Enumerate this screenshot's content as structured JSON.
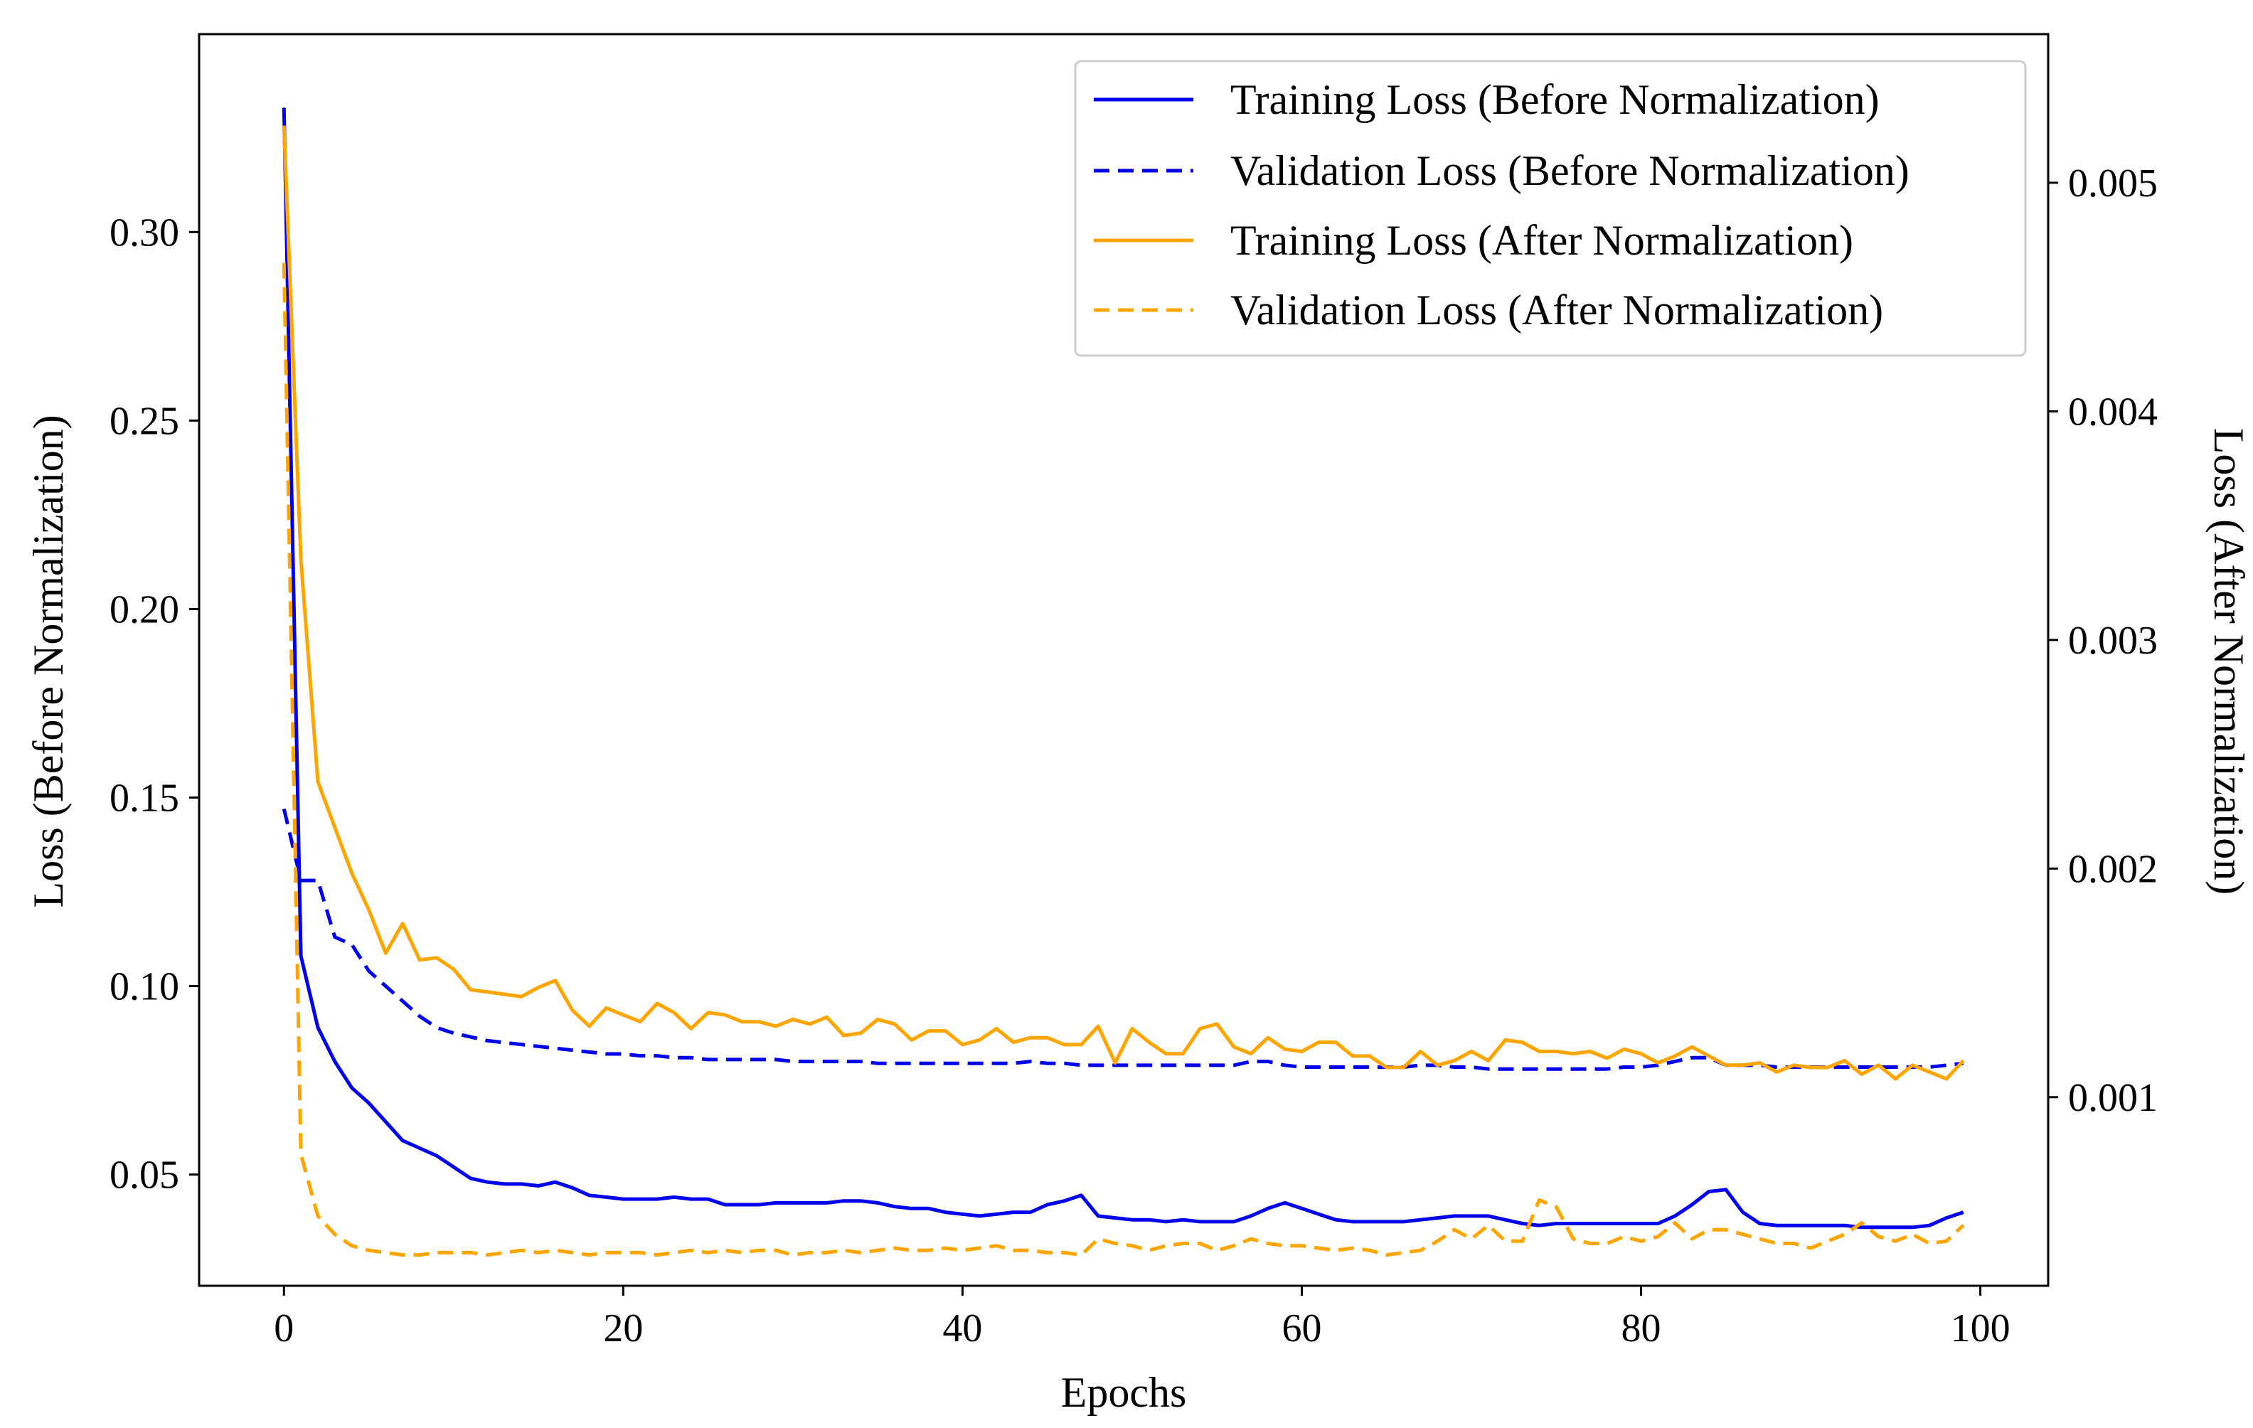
{
  "colors": {
    "before": "#0000ee",
    "after": "#ffa500",
    "axis": "#000000",
    "legend_border": "#cccccc",
    "background": "#ffffff"
  },
  "chart_data": {
    "type": "line",
    "title": "",
    "xlabel": "Epochs",
    "ylabel_left": "Loss (Before Normalization)",
    "ylabel_right": "Loss (After Normalization)",
    "xlim": [
      -5,
      104
    ],
    "ylim_left": [
      0.0205,
      0.3525
    ],
    "ylim_right": [
      0.000175,
      0.00565
    ],
    "x_ticks": [
      0,
      20,
      40,
      60,
      80,
      100
    ],
    "x_tick_labels": [
      "0",
      "20",
      "40",
      "60",
      "80",
      "100"
    ],
    "y_left_ticks": [
      0.05,
      0.1,
      0.15,
      0.2,
      0.25,
      0.3
    ],
    "y_left_tick_labels": [
      "0.05",
      "0.10",
      "0.15",
      "0.20",
      "0.25",
      "0.30"
    ],
    "y_right_ticks": [
      0.001,
      0.002,
      0.003,
      0.004,
      0.005
    ],
    "y_right_tick_labels": [
      "0.001",
      "0.002",
      "0.003",
      "0.004",
      "0.005"
    ],
    "legend_position": "top-right",
    "series": [
      {
        "name": "Training Loss (Before Normalization)",
        "axis": "left",
        "style": "solid",
        "color_key": "before",
        "x": [
          0,
          1,
          2,
          3,
          4,
          5,
          6,
          7,
          8,
          9,
          10,
          11,
          12,
          13,
          14,
          15,
          16,
          17,
          18,
          19,
          20,
          21,
          22,
          23,
          24,
          25,
          26,
          27,
          28,
          29,
          30,
          31,
          32,
          33,
          34,
          35,
          36,
          37,
          38,
          39,
          40,
          41,
          42,
          43,
          44,
          45,
          46,
          47,
          48,
          49,
          50,
          51,
          52,
          53,
          54,
          55,
          56,
          57,
          58,
          59,
          60,
          61,
          62,
          63,
          64,
          65,
          66,
          67,
          68,
          69,
          70,
          71,
          72,
          73,
          74,
          75,
          76,
          77,
          78,
          79,
          80,
          81,
          82,
          83,
          84,
          85,
          86,
          87,
          88,
          89,
          90,
          91,
          92,
          93,
          94,
          95,
          96,
          97,
          98,
          99
        ],
        "values": [
          0.333,
          0.108,
          0.089,
          0.08,
          0.073,
          0.069,
          0.064,
          0.059,
          0.057,
          0.055,
          0.052,
          0.049,
          0.048,
          0.0475,
          0.0475,
          0.047,
          0.048,
          0.0465,
          0.0445,
          0.044,
          0.0435,
          0.0435,
          0.0435,
          0.044,
          0.0435,
          0.0435,
          0.042,
          0.042,
          0.042,
          0.0425,
          0.0425,
          0.0425,
          0.0425,
          0.043,
          0.043,
          0.0425,
          0.0415,
          0.041,
          0.041,
          0.04,
          0.0395,
          0.039,
          0.0395,
          0.04,
          0.04,
          0.042,
          0.043,
          0.0445,
          0.039,
          0.0385,
          0.038,
          0.038,
          0.0375,
          0.038,
          0.0375,
          0.0375,
          0.0375,
          0.039,
          0.041,
          0.0425,
          0.041,
          0.0395,
          0.038,
          0.0375,
          0.0375,
          0.0375,
          0.0375,
          0.038,
          0.0385,
          0.039,
          0.039,
          0.039,
          0.038,
          0.037,
          0.0365,
          0.037,
          0.037,
          0.037,
          0.037,
          0.037,
          0.037,
          0.037,
          0.039,
          0.042,
          0.0455,
          0.046,
          0.04,
          0.037,
          0.0365,
          0.0365,
          0.0365,
          0.0365,
          0.0365,
          0.036,
          0.036,
          0.036,
          0.036,
          0.0365,
          0.0385,
          0.04
        ]
      },
      {
        "name": "Validation Loss (Before Normalization)",
        "axis": "left",
        "style": "dashed",
        "color_key": "before",
        "x": [
          0,
          1,
          2,
          3,
          4,
          5,
          6,
          7,
          8,
          9,
          10,
          11,
          12,
          13,
          14,
          15,
          16,
          17,
          18,
          19,
          20,
          21,
          22,
          23,
          24,
          25,
          26,
          27,
          28,
          29,
          30,
          31,
          32,
          33,
          34,
          35,
          36,
          37,
          38,
          39,
          40,
          41,
          42,
          43,
          44,
          45,
          46,
          47,
          48,
          49,
          50,
          51,
          52,
          53,
          54,
          55,
          56,
          57,
          58,
          59,
          60,
          61,
          62,
          63,
          64,
          65,
          66,
          67,
          68,
          69,
          70,
          71,
          72,
          73,
          74,
          75,
          76,
          77,
          78,
          79,
          80,
          81,
          82,
          83,
          84,
          85,
          86,
          87,
          88,
          89,
          90,
          91,
          92,
          93,
          94,
          95,
          96,
          97,
          98,
          99
        ],
        "values": [
          0.147,
          0.128,
          0.128,
          0.113,
          0.111,
          0.104,
          0.1,
          0.096,
          0.092,
          0.089,
          0.0875,
          0.0865,
          0.0855,
          0.085,
          0.0845,
          0.084,
          0.0835,
          0.083,
          0.0825,
          0.082,
          0.082,
          0.0815,
          0.0815,
          0.081,
          0.081,
          0.0805,
          0.0805,
          0.0805,
          0.0805,
          0.0805,
          0.08,
          0.08,
          0.08,
          0.08,
          0.08,
          0.0795,
          0.0795,
          0.0795,
          0.0795,
          0.0795,
          0.0795,
          0.0795,
          0.0795,
          0.0795,
          0.08,
          0.0795,
          0.0795,
          0.079,
          0.079,
          0.079,
          0.079,
          0.079,
          0.079,
          0.079,
          0.079,
          0.079,
          0.079,
          0.08,
          0.08,
          0.079,
          0.0785,
          0.0785,
          0.0785,
          0.0785,
          0.0785,
          0.0785,
          0.0785,
          0.079,
          0.079,
          0.0785,
          0.0785,
          0.078,
          0.078,
          0.078,
          0.078,
          0.078,
          0.078,
          0.078,
          0.078,
          0.0785,
          0.0785,
          0.079,
          0.08,
          0.081,
          0.081,
          0.079,
          0.079,
          0.079,
          0.0785,
          0.0785,
          0.0785,
          0.0785,
          0.0785,
          0.0785,
          0.0785,
          0.0785,
          0.0785,
          0.0785,
          0.079,
          0.0795
        ]
      },
      {
        "name": "Training Loss (After Normalization)",
        "axis": "right",
        "style": "solid",
        "color_key": "after",
        "x": [
          0,
          1,
          2,
          3,
          4,
          5,
          6,
          7,
          8,
          9,
          10,
          11,
          12,
          13,
          14,
          15,
          16,
          17,
          18,
          19,
          20,
          21,
          22,
          23,
          24,
          25,
          26,
          27,
          28,
          29,
          30,
          31,
          32,
          33,
          34,
          35,
          36,
          37,
          38,
          39,
          40,
          41,
          42,
          43,
          44,
          45,
          46,
          47,
          48,
          49,
          50,
          51,
          52,
          53,
          54,
          55,
          56,
          57,
          58,
          59,
          60,
          61,
          62,
          63,
          64,
          65,
          66,
          67,
          68,
          69,
          70,
          71,
          72,
          73,
          74,
          75,
          76,
          77,
          78,
          79,
          80,
          81,
          82,
          83,
          84,
          85,
          86,
          87,
          88,
          89,
          90,
          91,
          92,
          93,
          94,
          95,
          96,
          97,
          98,
          99
        ],
        "values": [
          0.00525,
          0.00335,
          0.00238,
          0.00218,
          0.00198,
          0.00182,
          0.00163,
          0.00176,
          0.0016,
          0.00161,
          0.00156,
          0.00147,
          0.00146,
          0.00145,
          0.00144,
          0.00148,
          0.00151,
          0.00138,
          0.00131,
          0.00139,
          0.00136,
          0.00133,
          0.00141,
          0.00137,
          0.0013,
          0.00137,
          0.00136,
          0.00133,
          0.00133,
          0.00131,
          0.00134,
          0.00132,
          0.00135,
          0.00127,
          0.00128,
          0.00134,
          0.00132,
          0.00125,
          0.00129,
          0.00129,
          0.00123,
          0.00125,
          0.0013,
          0.00124,
          0.00126,
          0.00126,
          0.00123,
          0.00123,
          0.00131,
          0.00115,
          0.0013,
          0.00124,
          0.00119,
          0.00119,
          0.0013,
          0.00132,
          0.00122,
          0.00119,
          0.00126,
          0.00121,
          0.0012,
          0.00124,
          0.00124,
          0.00118,
          0.00118,
          0.00113,
          0.00113,
          0.0012,
          0.00114,
          0.00116,
          0.0012,
          0.00116,
          0.00125,
          0.00124,
          0.0012,
          0.0012,
          0.00119,
          0.0012,
          0.00117,
          0.00121,
          0.00119,
          0.00115,
          0.00118,
          0.00122,
          0.00118,
          0.00114,
          0.00114,
          0.00115,
          0.00111,
          0.00114,
          0.00113,
          0.00113,
          0.00116,
          0.0011,
          0.00114,
          0.00108,
          0.00114,
          0.00111,
          0.00108,
          0.00116
        ]
      },
      {
        "name": "Validation Loss (After Normalization)",
        "axis": "right",
        "style": "dashed",
        "color_key": "after",
        "x": [
          0,
          1,
          2,
          3,
          4,
          5,
          6,
          7,
          8,
          9,
          10,
          11,
          12,
          13,
          14,
          15,
          16,
          17,
          18,
          19,
          20,
          21,
          22,
          23,
          24,
          25,
          26,
          27,
          28,
          29,
          30,
          31,
          32,
          33,
          34,
          35,
          36,
          37,
          38,
          39,
          40,
          41,
          42,
          43,
          44,
          45,
          46,
          47,
          48,
          49,
          50,
          51,
          52,
          53,
          54,
          55,
          56,
          57,
          58,
          59,
          60,
          61,
          62,
          63,
          64,
          65,
          66,
          67,
          68,
          69,
          70,
          71,
          72,
          73,
          74,
          75,
          76,
          77,
          78,
          79,
          80,
          81,
          82,
          83,
          84,
          85,
          86,
          87,
          88,
          89,
          90,
          91,
          92,
          93,
          94,
          95,
          96,
          97,
          98,
          99
        ],
        "values": [
          0.00465,
          0.00075,
          0.00048,
          0.0004,
          0.00035,
          0.00033,
          0.00032,
          0.00031,
          0.00031,
          0.00032,
          0.00032,
          0.00032,
          0.00031,
          0.00032,
          0.00033,
          0.00032,
          0.00033,
          0.00032,
          0.00031,
          0.00032,
          0.00032,
          0.00032,
          0.00031,
          0.00032,
          0.00033,
          0.00032,
          0.00033,
          0.00032,
          0.00033,
          0.00033,
          0.00031,
          0.00032,
          0.00032,
          0.00033,
          0.00032,
          0.00033,
          0.00034,
          0.00033,
          0.00033,
          0.00034,
          0.00033,
          0.00034,
          0.00035,
          0.00033,
          0.00033,
          0.00032,
          0.00032,
          0.00031,
          0.00038,
          0.00036,
          0.00035,
          0.00033,
          0.00035,
          0.00036,
          0.00036,
          0.00033,
          0.00035,
          0.00038,
          0.00036,
          0.00035,
          0.00035,
          0.00034,
          0.00033,
          0.00034,
          0.00033,
          0.00031,
          0.00032,
          0.00033,
          0.00037,
          0.00042,
          0.00038,
          0.00044,
          0.00037,
          0.00037,
          0.00055,
          0.00052,
          0.00038,
          0.00036,
          0.00036,
          0.00039,
          0.00037,
          0.00039,
          0.00045,
          0.00038,
          0.00042,
          0.00042,
          0.0004,
          0.00038,
          0.00036,
          0.00036,
          0.00034,
          0.00037,
          0.0004,
          0.00045,
          0.00039,
          0.00037,
          0.0004,
          0.00036,
          0.00037,
          0.00044
        ]
      }
    ]
  }
}
